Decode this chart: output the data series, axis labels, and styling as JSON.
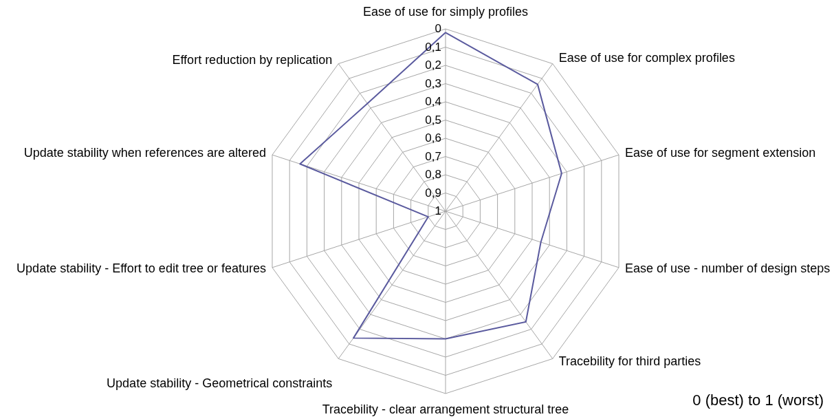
{
  "chart_data": {
    "type": "radar",
    "categories": [
      "Ease of use for simply profiles",
      "Ease of use for complex profiles",
      "Ease of use for segment extension",
      "Ease of use - number of design steps",
      "Tracebility for third parties",
      "Tracebility - clear arrangement structural tree",
      "Update stability - Geometrical constraints",
      "Update stability - Effort to edit tree or features",
      "Update stability when references are altered",
      "Effort reduction by replication"
    ],
    "series": [
      {
        "color": "#5a5a9e",
        "values": [
          0.02,
          0.14,
          0.33,
          0.45,
          0.25,
          0.3,
          0.14,
          0.9,
          0.16,
          0.27
        ]
      }
    ],
    "ylim": [
      1,
      0
    ],
    "yticks": [
      0,
      {
        "value": 0.1,
        "label": "0,1"
      },
      {
        "value": 0.2,
        "label": "0,2"
      },
      {
        "value": 0.3,
        "label": "0,3"
      },
      {
        "value": 0.4,
        "label": "0,4"
      },
      {
        "value": 0.5,
        "label": "0,5"
      },
      {
        "value": 0.6,
        "label": "0,6"
      },
      {
        "value": 0.7,
        "label": "0,7"
      },
      {
        "value": 0.8,
        "label": "0,8"
      },
      {
        "value": 0.9,
        "label": "0,9"
      },
      1
    ],
    "grid": true,
    "annotations": [
      "0 (best) to 1 (worst)"
    ]
  }
}
